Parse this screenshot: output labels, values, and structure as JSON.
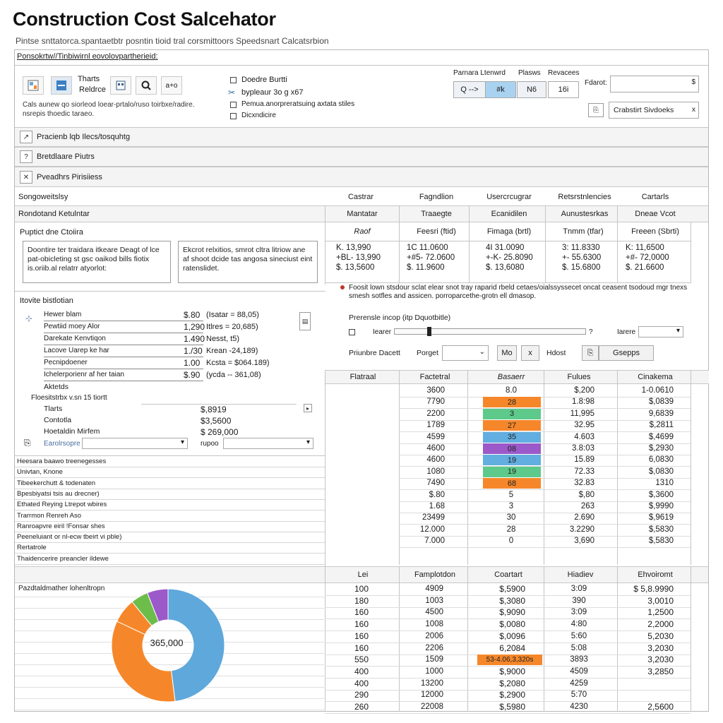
{
  "app": {
    "title": "Construction Cost Salcehator",
    "subtitle": "Pintse snttatorca.spantaetbtr posntin tioid tral corsmittoors Speedsnart Calcatsrbion"
  },
  "colors": {
    "orange": "#f5872a",
    "green": "#5dc98a",
    "blue": "#62aee0",
    "purple": "#9b59c9",
    "donut_blue": "#5fa8db",
    "donut_orange": "#f5872a",
    "donut_green": "#6cbd4a",
    "donut_purple": "#9b59c9"
  },
  "breadcrumb": "Ponsokrtw//Tinbiwirnl eovolovpartherieid:",
  "toolbar": {
    "btn1_label": "Tharts",
    "btn2_label": "Reldrce",
    "btn3_label": "a+o",
    "description": "Cals aunew qo siorleod loear-prtalo/ruso toirbxe/radire. nsrepis thoedic taraeo.",
    "options": [
      "Doedre Burtti",
      "bypleaur 3o g x67",
      "Pemua.anorpreratsuing axtata stiles",
      "Dicxndicire"
    ],
    "group_label_1": "Parnara Ltenwrd",
    "group_label_2": "Plasws",
    "group_label_3": "Revacees",
    "seg": [
      "Q -->",
      "#k",
      "N6",
      "16i"
    ],
    "field_label": "Fdarot:",
    "field_value": "$",
    "select_label": "Crabstirt Sivdoeks",
    "select_arrow": "x"
  },
  "sections": [
    "Pracienb lqb Ilecs/tosquhtg",
    "Bretdlaare Piutrs",
    "Pveadhrs Pirisiiess"
  ],
  "summary": {
    "label": "Songoweitslsy",
    "col_headers": [
      "Castrar",
      "Fagndlion",
      "Usercrcugrar",
      "Retsrstnlencies",
      "Cartarls"
    ]
  },
  "kv_header": {
    "left_label": "Rondotand Ketulntar",
    "col_headers": [
      "Mantatar",
      "Traaegte",
      "Ecanidilen",
      "Aunustesrkas",
      "Dneae Vcot"
    ]
  },
  "project": {
    "label": "Puptict dne Ctoiira",
    "box1": "Doontire ter traidara itkeare Deagt of lce pat-obicleting st gsc oaikod bills fiotix is.oriib.al relatrr atyorlot:",
    "box2": "Ekcrot relxitios, smrot cltra litriow ane af shoot dcide tas angosa sineciust eint ratenslidet.",
    "col_subheads": [
      "Raof",
      "Feesri (ftid)",
      "Fimaga (brtl)",
      "Tnmm (tfar)",
      "Freeen (Sbrti)"
    ],
    "cols": [
      [
        "K.  13,990",
        "+BL- 13,990",
        "$.  13,5600"
      ],
      [
        "1C  11.0600",
        "+#5-  72.0600",
        "$.  11.9600"
      ],
      [
        "4I  31.0090",
        "+-K-  25.8090",
        "$.  13,6080"
      ],
      [
        "3:  11.8330",
        "+-  55.6300",
        "$.  15.6800"
      ],
      [
        "K:  11,6500",
        "+#-  72,0000",
        "$.  21.6600"
      ]
    ]
  },
  "hourly": {
    "title": "Itovite bistlotian",
    "rows": [
      {
        "label": "Hewer blam",
        "value": "$.80",
        "note": "(Isatar = 88,05)"
      },
      {
        "label": "Pewtiid moey Alor",
        "value": "1,290",
        "note": "Itlres = 20,685)"
      },
      {
        "label": "Darekate Kenvtiqon",
        "value": "1.490",
        "note": "Nesst, t5)"
      },
      {
        "label": "Lacove Uarep ke har",
        "value": "1./30",
        "note": "Krean -24,189)"
      },
      {
        "label": "Pecnipdoener",
        "value": "1.00",
        "note": "Kcsta = $064.189)"
      },
      {
        "label": "Ichelerporienr af her taian",
        "value": "$.90",
        "note": "(ycda -- 361,08)"
      }
    ],
    "sub_title": "Aktetds",
    "sub_heading": "Floesitstrbx v.sn 15 tiortt",
    "sub_rows": [
      {
        "label": "Tlarts",
        "value": "$,8919"
      },
      {
        "label": "Contotla",
        "value": "$3,5600"
      },
      {
        "label": "Hoetaldin Mirfem",
        "value": "$ 269,000"
      }
    ],
    "filter_label": "Earolrsopre",
    "filter_hint": "rupoo"
  },
  "note": {
    "text": "Foosit lown stsdour sclat elear snot tray raparid rbeld cetaes/oialssyssecet oncat ceasent tsodoud mgr tnexs smesh sotfles and assicen. porroparcethe-grotn ell dmasop.",
    "slider_label": "Prerensle incop (itp Dquotbitle)",
    "slider_left": "Iearer",
    "slider_right": "Iarere",
    "controls_label": "Priunbre Dacett",
    "porget": "Porget",
    "btn_mo": "Mo",
    "btn_x": "x",
    "hdost": "Hdost",
    "btn_check": "Gsepps"
  },
  "table1": {
    "headers": [
      "Flatraal",
      "Factetral",
      "Basaerr",
      "Fulues",
      "Cinakema"
    ],
    "rows": [
      [
        "3600",
        "8.0",
        "$,200",
        "1-0.0610",
        ""
      ],
      [
        "7790",
        "28",
        "1.8:98",
        "$,0839",
        "orange"
      ],
      [
        "2200",
        "3",
        "11,995",
        "9,6839",
        "green"
      ],
      [
        "1789",
        "27",
        "32.95",
        "$,2811",
        "orange"
      ],
      [
        "4599",
        "35",
        "4.603",
        "$,4699",
        "blue"
      ],
      [
        "4600",
        "08",
        "3.8:03",
        "$,2930",
        "purple"
      ],
      [
        "4600",
        "19",
        "15.89",
        "6,0830",
        "blue"
      ],
      [
        "1080",
        "19",
        "72.33",
        "$,0830",
        "green"
      ],
      [
        "7490",
        "68",
        "32.83",
        "1310",
        "orange"
      ],
      [
        "$.80",
        "5",
        "$,80",
        "$,3600",
        ""
      ],
      [
        "1.68",
        "3",
        "263",
        "$,9990",
        ""
      ],
      [
        "23499",
        "30",
        "2.690",
        "$,9619",
        ""
      ],
      [
        "12.000",
        "28",
        "3.2290",
        "$,5830",
        ""
      ],
      [
        "7.000",
        "0",
        "3,690",
        "$,5830",
        ""
      ]
    ]
  },
  "left_list": [
    "Heesara baawo treenegesses",
    "Univtan, Knone",
    "Tibeekerchutt & todenaten",
    "Bpesbiyatsi tsis au drecner)",
    "Ethated Reying Ltrepot wbires",
    "Trarrmon Renreh Aso",
    "Ranroapvre eiril !Fonsar shes",
    "Peeneluiant or nl-ecw tbeirt vi pble)",
    "Rertatrole",
    "Thaidencerire preancler ildewe"
  ],
  "donut": {
    "title": "Pazdtaldmather lohenltropn",
    "center": "365,000",
    "values": [
      48,
      34,
      7,
      5,
      6
    ]
  },
  "table2": {
    "headers": [
      "Lei",
      "Famplotdon",
      "Coartart",
      "Hiadiev",
      "Ehvoiromt"
    ],
    "rows": [
      [
        "100",
        "4909",
        "$,5900",
        "3:09",
        "$ 5,8.9990",
        ""
      ],
      [
        "180",
        "1003",
        "$,3080",
        "390",
        "3,0010",
        ""
      ],
      [
        "160",
        "4500",
        "$,9090",
        "3:09",
        "1,2500",
        ""
      ],
      [
        "160",
        "1008",
        "$,0080",
        "4:80",
        "2,2000",
        ""
      ],
      [
        "160",
        "2006",
        "$,0096",
        "5:60",
        "5,2030",
        ""
      ],
      [
        "160",
        "2206",
        "6,2084",
        "5:08",
        "3,2030",
        ""
      ],
      [
        "550",
        "1509",
        "53-4.06,3,320s",
        "3893",
        "3,2030",
        "orange"
      ],
      [
        "400",
        "1000",
        "$,9000",
        "4509",
        "3,2850",
        ""
      ],
      [
        "400",
        "13200",
        "$,2080",
        "4259",
        "",
        ""
      ],
      [
        "290",
        "12000",
        "$,2900",
        "5:70",
        "",
        ""
      ],
      [
        "260",
        "22008",
        "$,5980",
        "4230",
        "2,5600",
        ""
      ]
    ]
  }
}
